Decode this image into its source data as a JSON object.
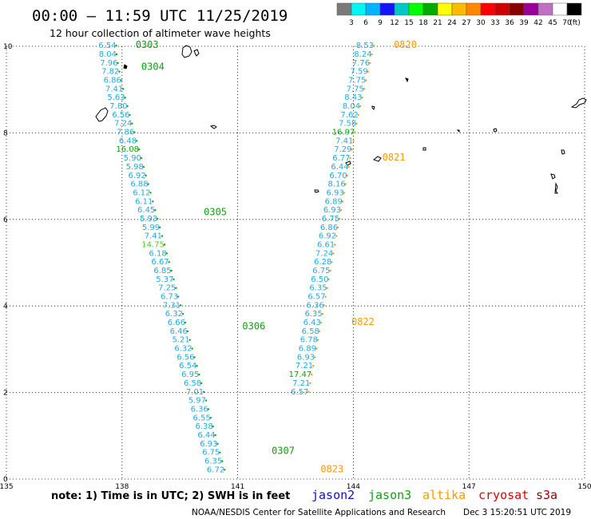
{
  "header": {
    "title": "00:00 – 11:59 UTC 11/25/2019",
    "subtitle": "12 hour collection of altimeter wave heights"
  },
  "colorbar": {
    "colors": [
      "#7a7a7a",
      "#00f5f5",
      "#00b4ff",
      "#1414ff",
      "#00c8c8",
      "#00ff00",
      "#00aa00",
      "#ffff00",
      "#ffbb00",
      "#ff8800",
      "#ff0000",
      "#cc0000",
      "#880000",
      "#990099",
      "#c070c0",
      "#ffffff",
      "#000000"
    ],
    "labels": [
      "3",
      "6",
      "9",
      "12",
      "15",
      "18",
      "21",
      "24",
      "27",
      "30",
      "33",
      "36",
      "39",
      "42",
      "45",
      "70"
    ],
    "unit": "(ft)"
  },
  "footer": {
    "note": "note: 1) Time is in UTC; 2) SWH is in feet",
    "satellites": [
      {
        "name": "jason2",
        "color": "#1010d0"
      },
      {
        "name": "jason3",
        "color": "#10a010"
      },
      {
        "name": "altika",
        "color": "#ff9900"
      },
      {
        "name": "cryosat",
        "color": "#e00000"
      },
      {
        "name": "s3a",
        "color": "#990000"
      }
    ],
    "credit": "NOAA/NESDIS Center for Satellite Applications and Research",
    "timestamp": "Dec  3 15:20:51 UTC 2019"
  },
  "chart_data": {
    "type": "scatter",
    "title": "00:00 – 11:59 UTC 11/25/2019",
    "subtitle": "12 hour collection of altimeter wave heights",
    "xlim": [
      135,
      150
    ],
    "ylim": [
      0,
      10
    ],
    "xticks": [
      "135",
      "138",
      "141",
      "144",
      "147",
      "150"
    ],
    "yticks": [
      "0",
      "2",
      "4",
      "6",
      "8",
      "10"
    ],
    "grid": true,
    "series": [
      {
        "name": "jason3",
        "color": "#10a010",
        "labels": [
          {
            "text": "0303",
            "lon": 138.35,
            "lat": 9.96
          },
          {
            "text": "0304",
            "lon": 138.5,
            "lat": 9.46
          },
          {
            "text": "0305",
            "lon": 140.12,
            "lat": 6.1
          },
          {
            "text": "0306",
            "lon": 141.12,
            "lat": 3.46
          },
          {
            "text": "0307",
            "lon": 141.88,
            "lat": 0.58
          }
        ],
        "points": [
          {
            "lon": 137.85,
            "lat": 9.96,
            "v": "6.54"
          },
          {
            "lon": 137.86,
            "lat": 9.76,
            "v": "8.04"
          },
          {
            "lon": 137.89,
            "lat": 9.56,
            "v": "7.96"
          },
          {
            "lon": 137.93,
            "lat": 9.36,
            "v": "7.82"
          },
          {
            "lon": 137.98,
            "lat": 9.16,
            "v": "6.86"
          },
          {
            "lon": 138.03,
            "lat": 8.96,
            "v": "7.41"
          },
          {
            "lon": 138.08,
            "lat": 8.76,
            "v": "5.63"
          },
          {
            "lon": 138.14,
            "lat": 8.56,
            "v": "7.80"
          },
          {
            "lon": 138.2,
            "lat": 8.36,
            "v": "6.56"
          },
          {
            "lon": 138.26,
            "lat": 8.16,
            "v": "7.24"
          },
          {
            "lon": 138.32,
            "lat": 7.96,
            "v": "7.86"
          },
          {
            "lon": 138.38,
            "lat": 7.76,
            "v": "6.48"
          },
          {
            "lon": 138.44,
            "lat": 7.56,
            "v": "16.08",
            "c": "#00aa00"
          },
          {
            "lon": 138.5,
            "lat": 7.36,
            "v": "5.90"
          },
          {
            "lon": 138.56,
            "lat": 7.16,
            "v": "5.98"
          },
          {
            "lon": 138.62,
            "lat": 6.96,
            "v": "6.92"
          },
          {
            "lon": 138.68,
            "lat": 6.76,
            "v": "6.88"
          },
          {
            "lon": 138.74,
            "lat": 6.56,
            "v": "6.12"
          },
          {
            "lon": 138.8,
            "lat": 6.36,
            "v": "6.11"
          },
          {
            "lon": 138.86,
            "lat": 6.16,
            "v": "6.45"
          },
          {
            "lon": 138.92,
            "lat": 5.96,
            "v": "5.93"
          },
          {
            "lon": 138.98,
            "lat": 5.76,
            "v": "5.99"
          },
          {
            "lon": 139.04,
            "lat": 5.56,
            "v": "7.41"
          },
          {
            "lon": 139.1,
            "lat": 5.36,
            "v": "14.75",
            "c": "#55cc22"
          },
          {
            "lon": 139.16,
            "lat": 5.16,
            "v": "6.18"
          },
          {
            "lon": 139.22,
            "lat": 4.96,
            "v": "6.67"
          },
          {
            "lon": 139.28,
            "lat": 4.76,
            "v": "6.85"
          },
          {
            "lon": 139.34,
            "lat": 4.56,
            "v": "5.37"
          },
          {
            "lon": 139.4,
            "lat": 4.36,
            "v": "7.25"
          },
          {
            "lon": 139.46,
            "lat": 4.16,
            "v": "6.73"
          },
          {
            "lon": 139.52,
            "lat": 3.96,
            "v": "7.31"
          },
          {
            "lon": 139.58,
            "lat": 3.76,
            "v": "6.32"
          },
          {
            "lon": 139.64,
            "lat": 3.56,
            "v": "6.66"
          },
          {
            "lon": 139.7,
            "lat": 3.36,
            "v": "6.46"
          },
          {
            "lon": 139.76,
            "lat": 3.16,
            "v": "5.21"
          },
          {
            "lon": 139.82,
            "lat": 2.96,
            "v": "6.32"
          },
          {
            "lon": 139.88,
            "lat": 2.76,
            "v": "6.56"
          },
          {
            "lon": 139.94,
            "lat": 2.56,
            "v": "6.54"
          },
          {
            "lon": 140.0,
            "lat": 2.36,
            "v": "6.95"
          },
          {
            "lon": 140.06,
            "lat": 2.16,
            "v": "6.58"
          },
          {
            "lon": 140.12,
            "lat": 1.96,
            "v": "7.01"
          },
          {
            "lon": 140.18,
            "lat": 1.76,
            "v": "5.97"
          },
          {
            "lon": 140.24,
            "lat": 1.56,
            "v": "6.36"
          },
          {
            "lon": 140.3,
            "lat": 1.36,
            "v": "6.55"
          },
          {
            "lon": 140.36,
            "lat": 1.16,
            "v": "6.38"
          },
          {
            "lon": 140.42,
            "lat": 0.96,
            "v": "6.44"
          },
          {
            "lon": 140.48,
            "lat": 0.76,
            "v": "6.93"
          },
          {
            "lon": 140.54,
            "lat": 0.56,
            "v": "6.75"
          },
          {
            "lon": 140.6,
            "lat": 0.36,
            "v": "6.35"
          },
          {
            "lon": 140.66,
            "lat": 0.16,
            "v": "6.72"
          }
        ]
      },
      {
        "name": "altika",
        "color": "#ff9900",
        "labels": [
          {
            "text": "0820",
            "lon": 145.05,
            "lat": 9.96
          },
          {
            "text": "0821",
            "lon": 144.75,
            "lat": 7.36
          },
          {
            "text": "0822",
            "lon": 143.95,
            "lat": 3.56
          },
          {
            "text": "0823",
            "lon": 143.15,
            "lat": 0.16
          }
        ],
        "points": [
          {
            "lon": 144.53,
            "lat": 9.96,
            "v": "8.53"
          },
          {
            "lon": 144.48,
            "lat": 9.76,
            "v": "8.24"
          },
          {
            "lon": 144.43,
            "lat": 9.56,
            "v": "7.76"
          },
          {
            "lon": 144.38,
            "lat": 9.36,
            "v": "7.59"
          },
          {
            "lon": 144.33,
            "lat": 9.16,
            "v": "7.75"
          },
          {
            "lon": 144.28,
            "lat": 8.96,
            "v": "7.75"
          },
          {
            "lon": 144.23,
            "lat": 8.76,
            "v": "8.43"
          },
          {
            "lon": 144.18,
            "lat": 8.56,
            "v": "8.04"
          },
          {
            "lon": 144.13,
            "lat": 8.36,
            "v": "7.62"
          },
          {
            "lon": 144.08,
            "lat": 8.16,
            "v": "7.58"
          },
          {
            "lon": 144.04,
            "lat": 7.96,
            "v": "16.97",
            "c": "#00aa00"
          },
          {
            "lon": 144.0,
            "lat": 7.76,
            "v": "7.41"
          },
          {
            "lon": 143.96,
            "lat": 7.56,
            "v": "7.29"
          },
          {
            "lon": 143.92,
            "lat": 7.36,
            "v": "6.77"
          },
          {
            "lon": 143.88,
            "lat": 7.16,
            "v": "6.44"
          },
          {
            "lon": 143.84,
            "lat": 6.96,
            "v": "6.70"
          },
          {
            "lon": 143.8,
            "lat": 6.76,
            "v": "8.16"
          },
          {
            "lon": 143.76,
            "lat": 6.56,
            "v": "6.93"
          },
          {
            "lon": 143.72,
            "lat": 6.36,
            "v": "6.89"
          },
          {
            "lon": 143.68,
            "lat": 6.16,
            "v": "6.93"
          },
          {
            "lon": 143.64,
            "lat": 5.96,
            "v": "6.75"
          },
          {
            "lon": 143.6,
            "lat": 5.76,
            "v": "6.86"
          },
          {
            "lon": 143.56,
            "lat": 5.56,
            "v": "6.92"
          },
          {
            "lon": 143.52,
            "lat": 5.36,
            "v": "6.61"
          },
          {
            "lon": 143.48,
            "lat": 5.16,
            "v": "7.24"
          },
          {
            "lon": 143.44,
            "lat": 4.96,
            "v": "6.28"
          },
          {
            "lon": 143.4,
            "lat": 4.76,
            "v": "6.75"
          },
          {
            "lon": 143.36,
            "lat": 4.56,
            "v": "6.50"
          },
          {
            "lon": 143.32,
            "lat": 4.36,
            "v": "6.35"
          },
          {
            "lon": 143.28,
            "lat": 4.16,
            "v": "6.57"
          },
          {
            "lon": 143.24,
            "lat": 3.96,
            "v": "6.36"
          },
          {
            "lon": 143.2,
            "lat": 3.76,
            "v": "6.35"
          },
          {
            "lon": 143.16,
            "lat": 3.56,
            "v": "6.43"
          },
          {
            "lon": 143.12,
            "lat": 3.36,
            "v": "6.58"
          },
          {
            "lon": 143.08,
            "lat": 3.16,
            "v": "6.78"
          },
          {
            "lon": 143.04,
            "lat": 2.96,
            "v": "6.89"
          },
          {
            "lon": 143.0,
            "lat": 2.76,
            "v": "6.93"
          },
          {
            "lon": 142.96,
            "lat": 2.56,
            "v": "7.21"
          },
          {
            "lon": 142.92,
            "lat": 2.36,
            "v": "17.47",
            "c": "#00aa00"
          },
          {
            "lon": 142.88,
            "lat": 2.16,
            "v": "7.21"
          },
          {
            "lon": 142.84,
            "lat": 1.96,
            "v": "6.57"
          }
        ]
      }
    ]
  }
}
